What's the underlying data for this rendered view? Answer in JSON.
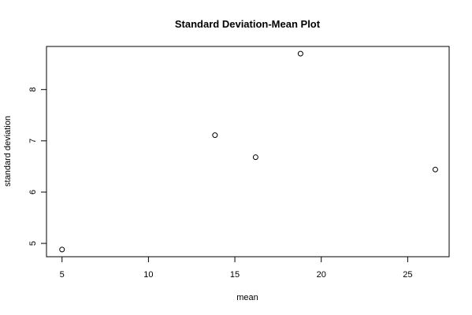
{
  "chart_data": {
    "type": "scatter",
    "title": "Standard Deviation-Mean Plot",
    "xlabel": "mean",
    "ylabel": "standard deviation",
    "xlim": [
      4.1,
      27.4
    ],
    "ylim": [
      4.74,
      8.84
    ],
    "xticks": [
      5,
      10,
      15,
      20,
      25
    ],
    "yticks": [
      5,
      6,
      7,
      8
    ],
    "grid": false,
    "legend": "none",
    "points": [
      {
        "x": 5.0,
        "y": 4.88
      },
      {
        "x": 13.85,
        "y": 7.11
      },
      {
        "x": 16.2,
        "y": 6.68
      },
      {
        "x": 18.8,
        "y": 8.7
      },
      {
        "x": 26.6,
        "y": 6.44
      }
    ]
  }
}
